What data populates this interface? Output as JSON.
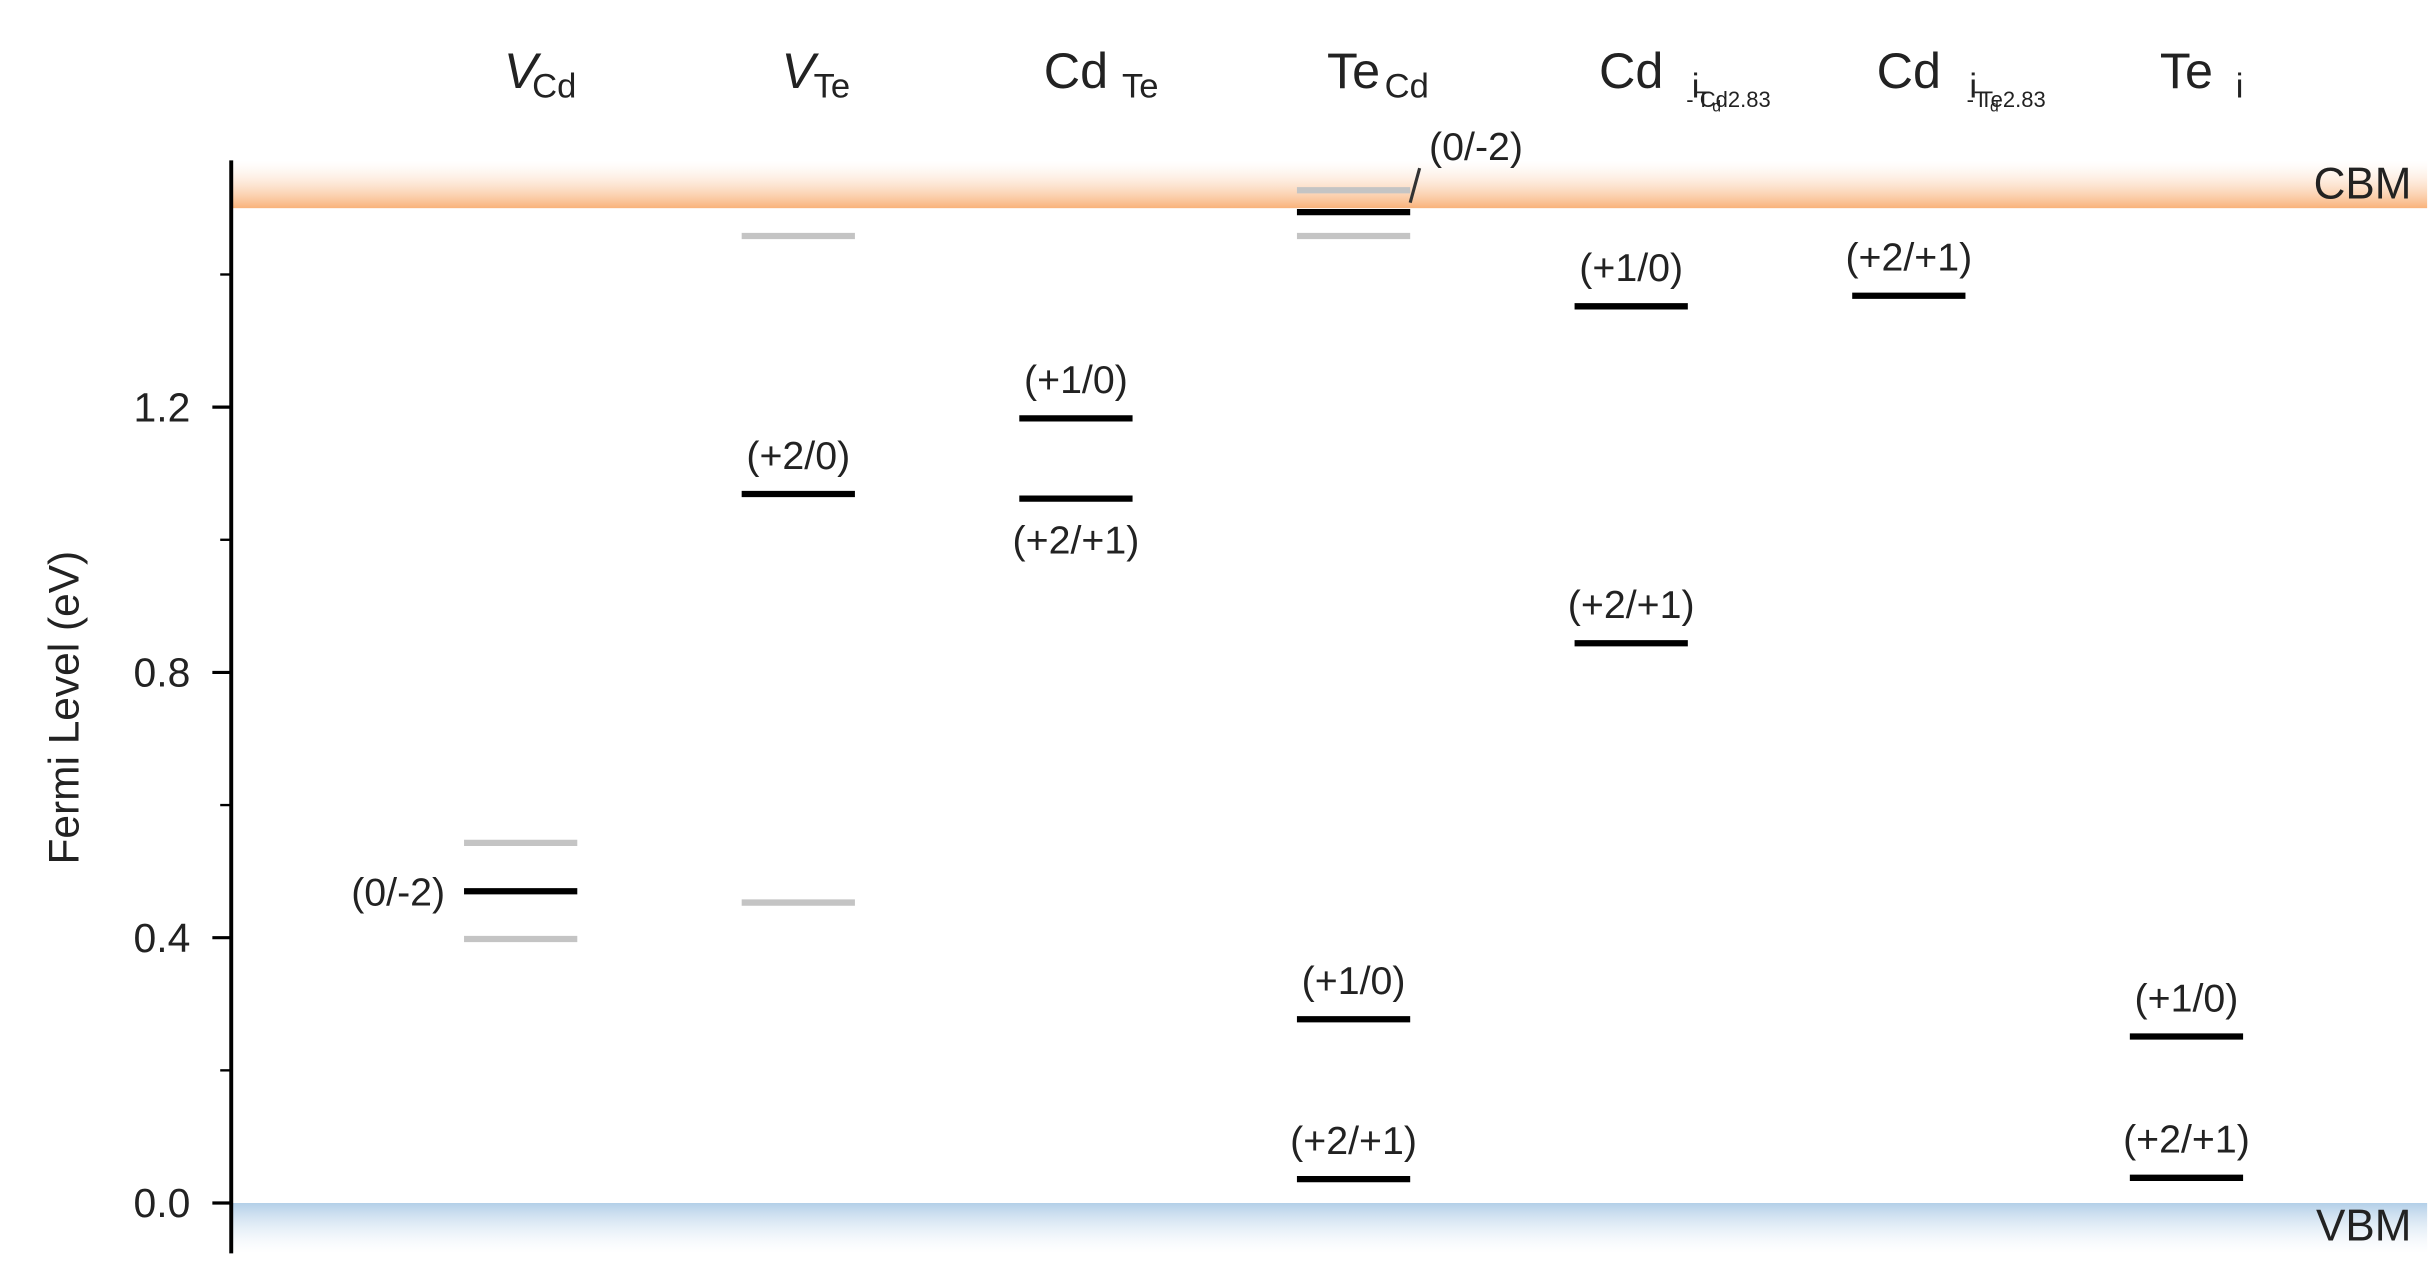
{
  "chart_data": {
    "type": "transition_levels",
    "ylabel": "Fermi Level (eV)",
    "ylim": [
      -0.076,
      1.572
    ],
    "yticks": [
      {
        "value": 0,
        "label": "0.0"
      },
      {
        "value": 0.4,
        "label": "0.4"
      },
      {
        "value": 0.8,
        "label": "0.8"
      },
      {
        "value": 1.2,
        "label": "1.2"
      }
    ],
    "yminor": [
      0.2,
      0.6,
      1.0,
      1.4
    ],
    "cbm": 1.5,
    "cbm_label": "CBM",
    "cbm_color": "#f9b27a",
    "vbm": 0,
    "vbm_label": "VBM",
    "vbm_color": "#b3cfe8",
    "level_color": "#000000",
    "metastable_color": "#c4c4c4",
    "defects": [
      {
        "name": [
          {
            "text": "V",
            "level": 0,
            "italic": true
          },
          {
            "text": "Cd",
            "level": 1
          }
        ],
        "levels": [
          {
            "value": 0.47,
            "label": "(0/-2)",
            "label_side": "left"
          }
        ],
        "metastable": [
          0.543,
          0.398
        ]
      },
      {
        "name": [
          {
            "text": "V",
            "level": 0,
            "italic": true
          },
          {
            "text": "Te",
            "level": 1
          }
        ],
        "levels": [
          {
            "value": 1.069,
            "label": "(+2/0)",
            "label_side": "above"
          }
        ],
        "metastable": [
          1.458,
          0.453
        ]
      },
      {
        "name": [
          {
            "text": "Cd",
            "level": 0
          },
          {
            "text": "Te",
            "level": 1
          }
        ],
        "levels": [
          {
            "value": 1.183,
            "label": "(+1/0)",
            "label_side": "above"
          },
          {
            "value": 1.062,
            "label": "(+2/+1)",
            "label_side": "below"
          }
        ],
        "metastable": []
      },
      {
        "name": [
          {
            "text": "Te",
            "level": 0
          },
          {
            "text": "Cd",
            "level": 1
          }
        ],
        "levels": [
          {
            "value": 1.494,
            "label": "(0/-2)",
            "label_side": "upper-right"
          },
          {
            "value": 0.277,
            "label": "(+1/0)",
            "label_side": "above"
          },
          {
            "value": 0.036,
            "label": "(+2/+1)",
            "label_side": "above"
          }
        ],
        "metastable": [
          1.527,
          1.458
        ]
      },
      {
        "name": [
          {
            "text": "Cd",
            "level": 0
          },
          {
            "text": "i",
            "level": 1
          },
          {
            "text": "T",
            "level": 2
          },
          {
            "text": "d",
            "level": 3
          },
          {
            "text": " - Cd2.83",
            "level": 2
          }
        ],
        "levels": [
          {
            "value": 1.352,
            "label": "(+1/0)",
            "label_side": "above"
          },
          {
            "value": 0.844,
            "label": "(+2/+1)",
            "label_side": "above"
          }
        ],
        "metastable": []
      },
      {
        "name": [
          {
            "text": "Cd",
            "level": 0
          },
          {
            "text": "i",
            "level": 1
          },
          {
            "text": "T",
            "level": 2
          },
          {
            "text": "d",
            "level": 3
          },
          {
            "text": " - Te2.83",
            "level": 2
          }
        ],
        "levels": [
          {
            "value": 1.368,
            "label": "(+2/+1)",
            "label_side": "above"
          }
        ],
        "metastable": []
      },
      {
        "name": [
          {
            "text": "Te",
            "level": 0
          },
          {
            "text": "i",
            "level": 1
          }
        ],
        "levels": [
          {
            "value": 0.251,
            "label": "(+1/0)",
            "label_side": "above"
          },
          {
            "value": 0.038,
            "label": "(+2/+1)",
            "label_side": "above"
          }
        ],
        "metastable": []
      }
    ]
  }
}
